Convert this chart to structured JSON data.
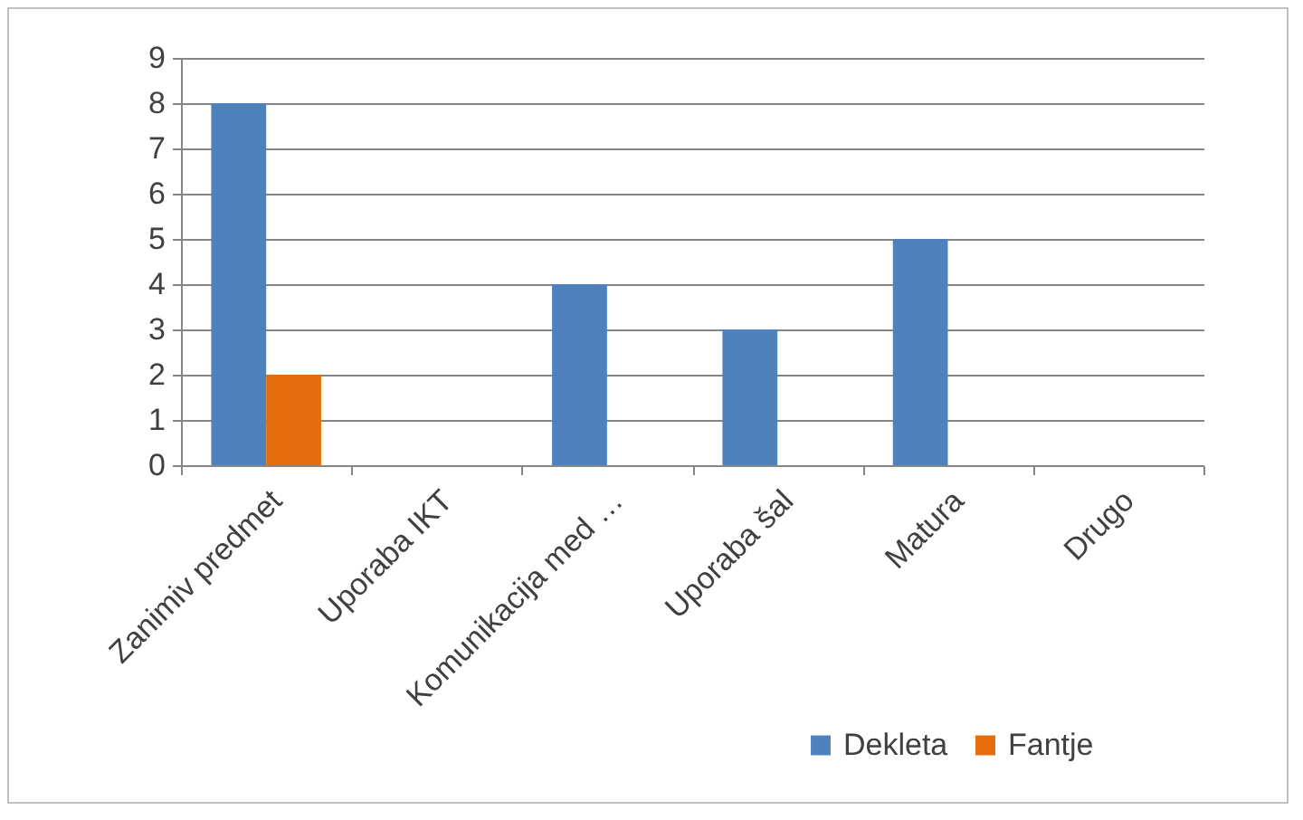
{
  "chart_data": {
    "type": "bar",
    "categories": [
      "Zanimiv predmet",
      "Uporaba IKT",
      "Komunikacija med …",
      "Uporaba šal",
      "Matura",
      "Drugo"
    ],
    "series": [
      {
        "name": "Dekleta",
        "color": "#4f81bd",
        "values": [
          8,
          0,
          4,
          3,
          5,
          0
        ]
      },
      {
        "name": "Fantje",
        "color": "#e46c0a",
        "values": [
          2,
          0,
          0,
          0,
          0,
          0
        ]
      }
    ],
    "ylim": [
      0,
      9
    ],
    "yticks": [
      0,
      1,
      2,
      3,
      4,
      5,
      6,
      7,
      8,
      9
    ],
    "grid": "y",
    "legend": "bottom right"
  }
}
